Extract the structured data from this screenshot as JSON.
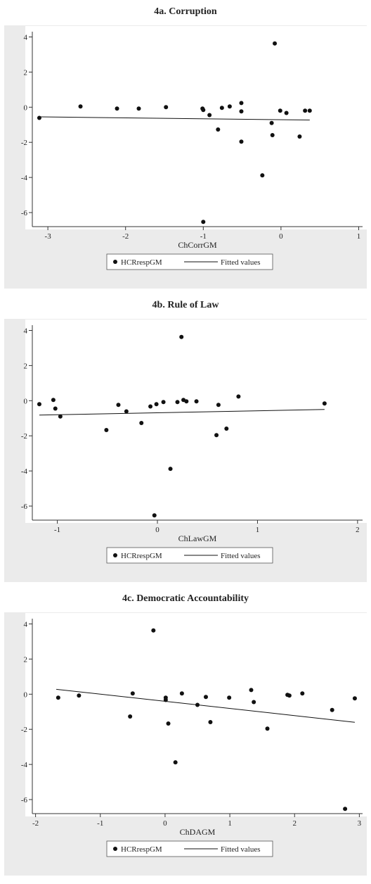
{
  "chart_data": [
    {
      "type": "scatter",
      "title": "4a. Corruption",
      "xlabel": "ChCorrGM",
      "xlim": [
        -3.2,
        1.05
      ],
      "xticks": [
        -3,
        -2,
        -1,
        0,
        1
      ],
      "ylim": [
        -6.8,
        4.3
      ],
      "yticks": [
        -6,
        -4,
        -2,
        0,
        2,
        4
      ],
      "series": [
        {
          "name": "HCRrespGM",
          "color": "#111111",
          "x": [
            -3.11,
            -2.58,
            -2.11,
            -1.83,
            -1.48,
            -1.01,
            -1.0,
            -0.92,
            -0.81,
            -0.76,
            -0.66,
            -0.51,
            -0.51,
            -0.51,
            -0.24,
            -0.12,
            -0.11,
            -0.08,
            -0.01,
            0.07,
            0.24,
            0.31,
            0.37,
            -1.0
          ],
          "values": [
            -0.61,
            0.04,
            -0.08,
            -0.08,
            0,
            -0.08,
            -0.16,
            -0.45,
            -1.27,
            -0.04,
            0.04,
            0.24,
            -0.24,
            -1.96,
            -3.88,
            -0.9,
            -1.59,
            3.63,
            -0.2,
            -0.33,
            -1.67,
            -0.2,
            -0.2,
            -6.53
          ]
        },
        {
          "name": "Fitted values",
          "color": "#111111",
          "x": [
            -3.11,
            0.37
          ],
          "values": [
            -0.55,
            -0.73
          ]
        }
      ]
    },
    {
      "type": "scatter",
      "title": "4b. Rule of Law",
      "xlabel": "ChLawGM",
      "xlim": [
        -1.25,
        2.05
      ],
      "xticks": [
        -1,
        0,
        1,
        2
      ],
      "ylim": [
        -6.8,
        4.3
      ],
      "yticks": [
        -6,
        -4,
        -2,
        0,
        2,
        4
      ],
      "series": [
        {
          "name": "HCRrespGM",
          "color": "#111111",
          "x": [
            -1.18,
            -1.04,
            -1.02,
            -0.97,
            -0.51,
            -0.39,
            -0.31,
            -0.16,
            -0.07,
            -0.01,
            -0.03,
            0.06,
            0.13,
            0.2,
            0.24,
            0.26,
            0.29,
            0.39,
            0.59,
            0.61,
            0.69,
            0.81,
            1.67
          ],
          "values": [
            -0.2,
            0.04,
            -0.45,
            -0.9,
            -1.67,
            -0.24,
            -0.61,
            -1.27,
            -0.33,
            -0.2,
            -6.53,
            -0.08,
            -3.88,
            -0.08,
            3.63,
            0.04,
            -0.04,
            -0.04,
            -1.96,
            -0.24,
            -1.59,
            0.24,
            -0.16
          ]
        },
        {
          "name": "Fitted values",
          "color": "#111111",
          "x": [
            -1.18,
            1.67
          ],
          "values": [
            -0.82,
            -0.5
          ]
        }
      ]
    },
    {
      "type": "scatter",
      "title": "4c. Democratic Accountability",
      "xlabel": "ChDAGM",
      "xlim": [
        -2.05,
        3.05
      ],
      "xticks": [
        -2,
        -1,
        0,
        1,
        2,
        3
      ],
      "ylim": [
        -6.8,
        4.3
      ],
      "yticks": [
        -6,
        -4,
        -2,
        0,
        2,
        4
      ],
      "series": [
        {
          "name": "HCRrespGM",
          "color": "#111111",
          "x": [
            -1.65,
            -1.33,
            -0.54,
            -0.5,
            -0.18,
            0.01,
            0.01,
            0.05,
            0.16,
            0.26,
            0.5,
            0.63,
            0.7,
            0.99,
            1.33,
            1.37,
            1.58,
            1.89,
            1.92,
            2.12,
            2.58,
            2.78,
            2.93
          ],
          "values": [
            -0.2,
            -0.08,
            -1.27,
            0.04,
            3.63,
            -0.2,
            -0.33,
            -1.67,
            -3.88,
            0.04,
            -0.61,
            -0.16,
            -1.59,
            -0.2,
            0.24,
            -0.45,
            -1.96,
            -0.04,
            -0.08,
            0.04,
            -0.9,
            -6.53,
            -0.24
          ]
        },
        {
          "name": "Fitted values",
          "color": "#111111",
          "x": [
            -1.68,
            2.93
          ],
          "values": [
            0.28,
            -1.6
          ]
        }
      ]
    }
  ]
}
